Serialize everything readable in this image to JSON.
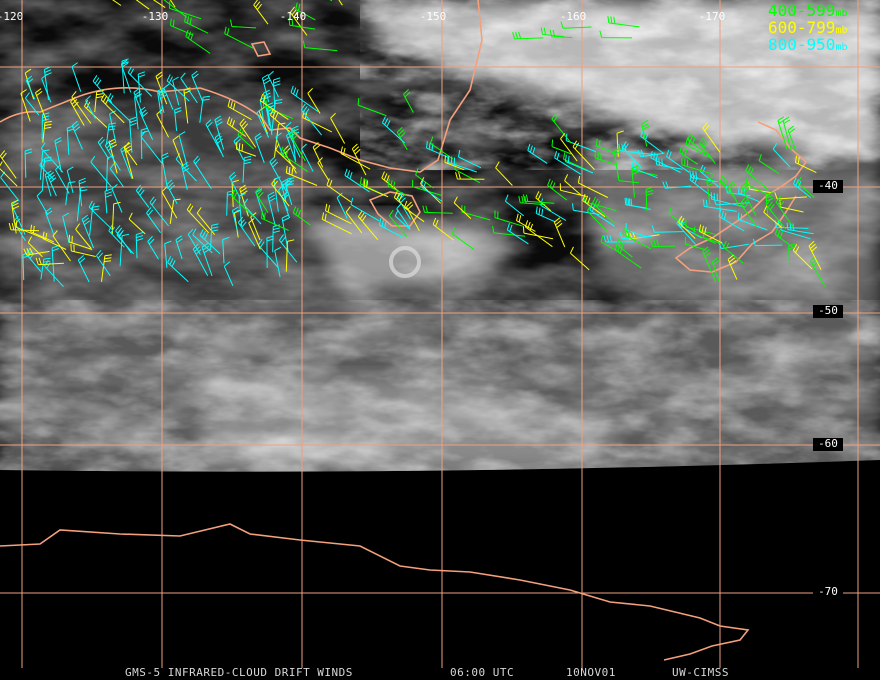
{
  "map": {
    "lon_labels": [
      "-120",
      "-130",
      "-140",
      "-150",
      "-160",
      "-170"
    ],
    "lat_labels": [
      "-40",
      "-50",
      "-60",
      "-70"
    ],
    "legend": [
      {
        "label": "400-599",
        "unit": "mb",
        "color": "#00ff00"
      },
      {
        "label": "600-799",
        "unit": "mb",
        "color": "#ffff00"
      },
      {
        "label": "800-950",
        "unit": "mb",
        "color": "#00ffff"
      }
    ],
    "footer": {
      "product": "GMS-5 INFRARED-CLOUD DRIFT WINDS",
      "time": "06:00 UTC",
      "date": "10NOV01",
      "source": "UW-CIMSS"
    }
  }
}
